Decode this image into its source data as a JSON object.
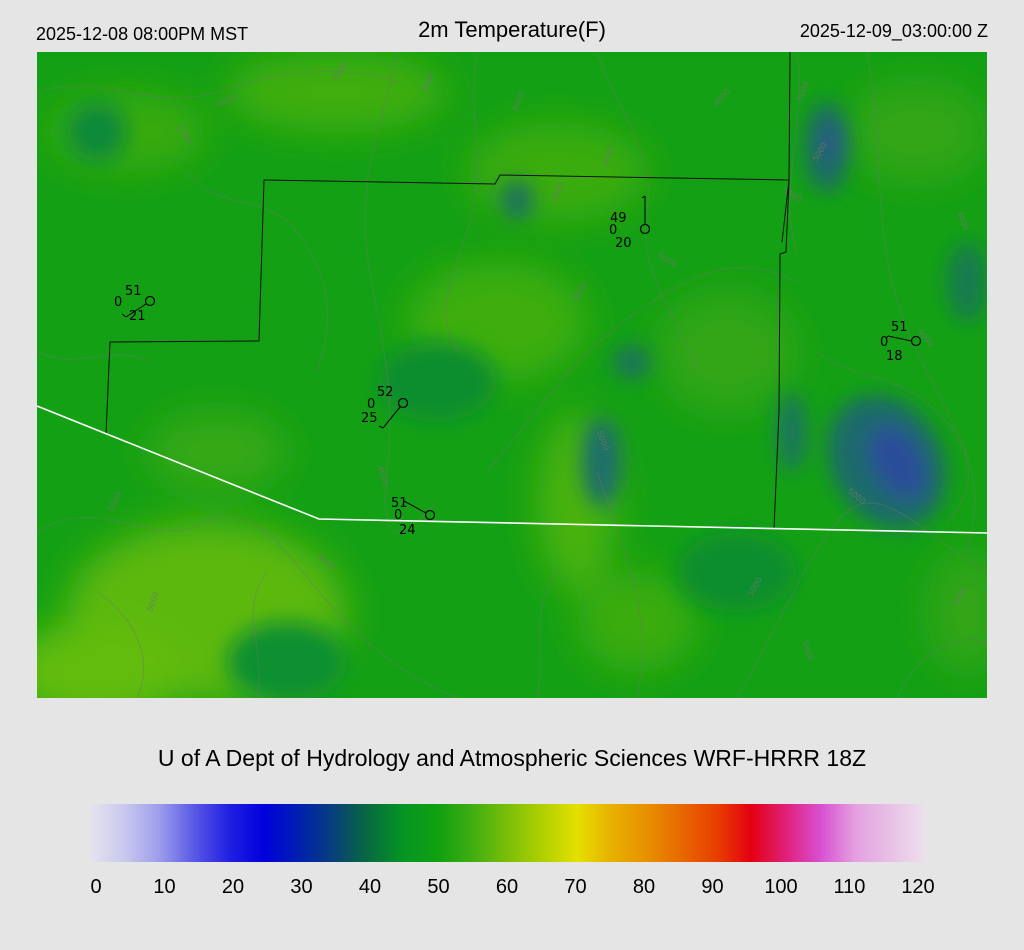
{
  "header": {
    "local_time": "2025-12-08 08:00PM MST",
    "title": "2m Temperature(F)",
    "utc_time": "2025-12-09_03:00:00 Z"
  },
  "credit": "U of A Dept of Hydrology and Atmospheric Sciences WRF-HRRR 18Z",
  "colorbar": {
    "ticks": [
      "0",
      "10",
      "20",
      "30",
      "40",
      "50",
      "60",
      "70",
      "80",
      "90",
      "100",
      "110",
      "120"
    ],
    "colors": [
      "#e4e4ee",
      "#c8c8ee",
      "#9c9cec",
      "#5858e6",
      "#2020e2",
      "#0000dc",
      "#0020b0",
      "#08407a",
      "#086a3e",
      "#049624",
      "#10a010",
      "#40ae10",
      "#7abe08",
      "#b0d000",
      "#e4e000",
      "#e8b000",
      "#e89000",
      "#e86800",
      "#e84000",
      "#e40010",
      "#e0207a",
      "#d850d0",
      "#e4a0e0",
      "#ece0ec"
    ],
    "values": [
      0,
      5,
      10,
      15,
      20,
      25,
      30,
      35,
      40,
      45,
      50,
      55,
      60,
      65,
      70,
      75,
      80,
      85,
      90,
      95,
      100,
      105,
      110,
      120
    ]
  },
  "map": {
    "contour_labels": [
      "5000",
      "4000",
      "5000",
      "5000",
      "4000",
      "5000",
      "5000",
      "5000",
      "5000",
      "4000",
      "5000",
      "5000",
      "5000",
      "5000",
      "5000",
      "5000",
      "4000",
      "5000",
      "4000",
      "5000",
      "5000",
      "5000",
      "4000",
      "5000"
    ],
    "stations": [
      {
        "temp": "51",
        "zero": "0",
        "dew": "21"
      },
      {
        "temp": "49",
        "zero": "0",
        "dew": "20"
      },
      {
        "temp": "52",
        "zero": "0",
        "dew": "25"
      },
      {
        "temp": "51",
        "zero": "0",
        "dew": "24"
      },
      {
        "temp": "51",
        "zero": "0",
        "dew": "18"
      }
    ]
  }
}
